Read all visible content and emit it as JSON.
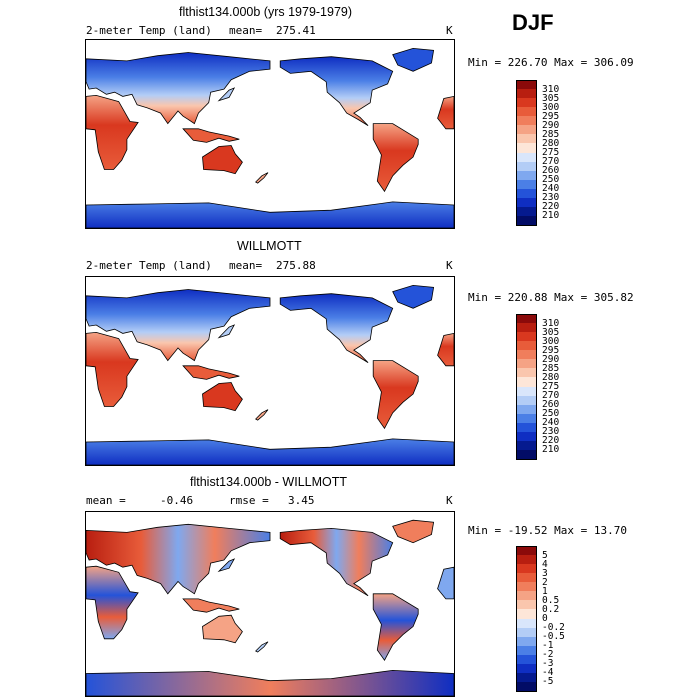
{
  "season": "DJF",
  "panels": [
    {
      "id": "model",
      "title": "flthist134.000b (yrs 1979-1979)",
      "left_label": "2-meter Temp (land)",
      "stat1_label": "mean=",
      "stat1_value": "275.41",
      "units": "K",
      "minmax": "Min = 226.70 Max = 306.09",
      "colorbar": [
        "310",
        "305",
        "300",
        "295",
        "290",
        "285",
        "280",
        "275",
        "270",
        "260",
        "250",
        "240",
        "230",
        "220",
        "210"
      ]
    },
    {
      "id": "obs",
      "title": "WILLMOTT",
      "left_label": "2-meter Temp (land)",
      "stat1_label": "mean=",
      "stat1_value": "275.88",
      "units": "K",
      "minmax": "Min = 220.88 Max = 305.82",
      "colorbar": [
        "310",
        "305",
        "300",
        "295",
        "290",
        "285",
        "280",
        "275",
        "270",
        "260",
        "250",
        "240",
        "230",
        "220",
        "210"
      ]
    },
    {
      "id": "diff",
      "title": "flthist134.000b - WILLMOTT",
      "left_label": "mean =",
      "left_value": "-0.46",
      "stat1_label": "rmse =",
      "stat1_value": "3.45",
      "units": "K",
      "minmax": "Min = -19.52 Max =  13.70",
      "colorbar": [
        "5",
        "4",
        "3",
        "2",
        "1",
        "0.5",
        "0.2",
        "0",
        "-0.2",
        "-0.5",
        "-1",
        "-2",
        "-3",
        "-4",
        "-5"
      ]
    }
  ],
  "colors": {
    "abs_scale": [
      "#8b0a0a",
      "#b81e10",
      "#d9381f",
      "#e85c3a",
      "#f07e5c",
      "#f5a385",
      "#fac6ad",
      "#fde6d8",
      "#d9e6fb",
      "#b3cdf6",
      "#7fa8ef",
      "#4b7fe6",
      "#2453d9",
      "#0f2ec2",
      "#051a8f",
      "#020c66"
    ],
    "diff_scale": [
      "#8b0a0a",
      "#b81e10",
      "#d9381f",
      "#e85c3a",
      "#f07e5c",
      "#f5a385",
      "#fac6ad",
      "#fde6d8",
      "#d9e6fb",
      "#b3cdf6",
      "#7fa8ef",
      "#4b7fe6",
      "#2453d9",
      "#0f2ec2",
      "#051a8f",
      "#020c66"
    ]
  },
  "chart_data": [
    {
      "type": "heatmap",
      "title": "flthist134.000b (yrs 1979-1979)",
      "variable": "2-meter Temp (land)",
      "season": "DJF",
      "mean": 275.41,
      "min": 226.7,
      "max": 306.09,
      "units": "K",
      "levels": [
        210,
        220,
        230,
        240,
        250,
        260,
        270,
        275,
        280,
        285,
        290,
        295,
        300,
        305,
        310
      ]
    },
    {
      "type": "heatmap",
      "title": "WILLMOTT",
      "variable": "2-meter Temp (land)",
      "season": "DJF",
      "mean": 275.88,
      "min": 220.88,
      "max": 305.82,
      "units": "K",
      "levels": [
        210,
        220,
        230,
        240,
        250,
        260,
        270,
        275,
        280,
        285,
        290,
        295,
        300,
        305,
        310
      ]
    },
    {
      "type": "heatmap",
      "title": "flthist134.000b - WILLMOTT",
      "season": "DJF",
      "mean": -0.46,
      "rmse": 3.45,
      "min": -19.52,
      "max": 13.7,
      "units": "K",
      "levels": [
        -5,
        -4,
        -3,
        -2,
        -1,
        -0.5,
        -0.2,
        0,
        0.2,
        0.5,
        1,
        2,
        3,
        4,
        5
      ]
    }
  ]
}
